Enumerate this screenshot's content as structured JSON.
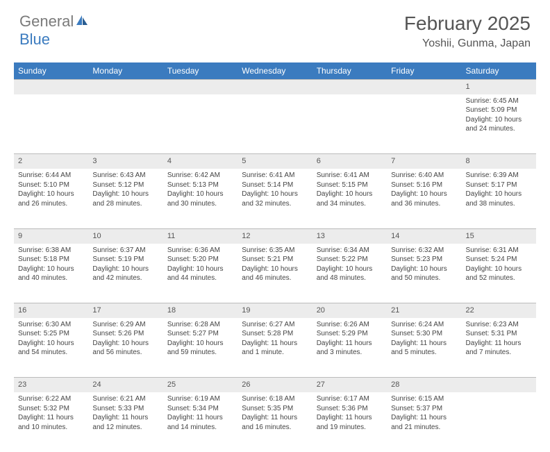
{
  "logo": {
    "text1": "General",
    "text2": "Blue"
  },
  "title": "February 2025",
  "location": "Yoshii, Gunma, Japan",
  "header_bg": "#3b7bbf",
  "daynum_bg": "#ececec",
  "days": [
    "Sunday",
    "Monday",
    "Tuesday",
    "Wednesday",
    "Thursday",
    "Friday",
    "Saturday"
  ],
  "weeks": [
    [
      null,
      null,
      null,
      null,
      null,
      null,
      {
        "n": "1",
        "sr": "6:45 AM",
        "ss": "5:09 PM",
        "dl": "10 hours and 24 minutes."
      }
    ],
    [
      {
        "n": "2",
        "sr": "6:44 AM",
        "ss": "5:10 PM",
        "dl": "10 hours and 26 minutes."
      },
      {
        "n": "3",
        "sr": "6:43 AM",
        "ss": "5:12 PM",
        "dl": "10 hours and 28 minutes."
      },
      {
        "n": "4",
        "sr": "6:42 AM",
        "ss": "5:13 PM",
        "dl": "10 hours and 30 minutes."
      },
      {
        "n": "5",
        "sr": "6:41 AM",
        "ss": "5:14 PM",
        "dl": "10 hours and 32 minutes."
      },
      {
        "n": "6",
        "sr": "6:41 AM",
        "ss": "5:15 PM",
        "dl": "10 hours and 34 minutes."
      },
      {
        "n": "7",
        "sr": "6:40 AM",
        "ss": "5:16 PM",
        "dl": "10 hours and 36 minutes."
      },
      {
        "n": "8",
        "sr": "6:39 AM",
        "ss": "5:17 PM",
        "dl": "10 hours and 38 minutes."
      }
    ],
    [
      {
        "n": "9",
        "sr": "6:38 AM",
        "ss": "5:18 PM",
        "dl": "10 hours and 40 minutes."
      },
      {
        "n": "10",
        "sr": "6:37 AM",
        "ss": "5:19 PM",
        "dl": "10 hours and 42 minutes."
      },
      {
        "n": "11",
        "sr": "6:36 AM",
        "ss": "5:20 PM",
        "dl": "10 hours and 44 minutes."
      },
      {
        "n": "12",
        "sr": "6:35 AM",
        "ss": "5:21 PM",
        "dl": "10 hours and 46 minutes."
      },
      {
        "n": "13",
        "sr": "6:34 AM",
        "ss": "5:22 PM",
        "dl": "10 hours and 48 minutes."
      },
      {
        "n": "14",
        "sr": "6:32 AM",
        "ss": "5:23 PM",
        "dl": "10 hours and 50 minutes."
      },
      {
        "n": "15",
        "sr": "6:31 AM",
        "ss": "5:24 PM",
        "dl": "10 hours and 52 minutes."
      }
    ],
    [
      {
        "n": "16",
        "sr": "6:30 AM",
        "ss": "5:25 PM",
        "dl": "10 hours and 54 minutes."
      },
      {
        "n": "17",
        "sr": "6:29 AM",
        "ss": "5:26 PM",
        "dl": "10 hours and 56 minutes."
      },
      {
        "n": "18",
        "sr": "6:28 AM",
        "ss": "5:27 PM",
        "dl": "10 hours and 59 minutes."
      },
      {
        "n": "19",
        "sr": "6:27 AM",
        "ss": "5:28 PM",
        "dl": "11 hours and 1 minute."
      },
      {
        "n": "20",
        "sr": "6:26 AM",
        "ss": "5:29 PM",
        "dl": "11 hours and 3 minutes."
      },
      {
        "n": "21",
        "sr": "6:24 AM",
        "ss": "5:30 PM",
        "dl": "11 hours and 5 minutes."
      },
      {
        "n": "22",
        "sr": "6:23 AM",
        "ss": "5:31 PM",
        "dl": "11 hours and 7 minutes."
      }
    ],
    [
      {
        "n": "23",
        "sr": "6:22 AM",
        "ss": "5:32 PM",
        "dl": "11 hours and 10 minutes."
      },
      {
        "n": "24",
        "sr": "6:21 AM",
        "ss": "5:33 PM",
        "dl": "11 hours and 12 minutes."
      },
      {
        "n": "25",
        "sr": "6:19 AM",
        "ss": "5:34 PM",
        "dl": "11 hours and 14 minutes."
      },
      {
        "n": "26",
        "sr": "6:18 AM",
        "ss": "5:35 PM",
        "dl": "11 hours and 16 minutes."
      },
      {
        "n": "27",
        "sr": "6:17 AM",
        "ss": "5:36 PM",
        "dl": "11 hours and 19 minutes."
      },
      {
        "n": "28",
        "sr": "6:15 AM",
        "ss": "5:37 PM",
        "dl": "11 hours and 21 minutes."
      },
      null
    ]
  ],
  "labels": {
    "sunrise": "Sunrise:",
    "sunset": "Sunset:",
    "daylight": "Daylight:"
  }
}
